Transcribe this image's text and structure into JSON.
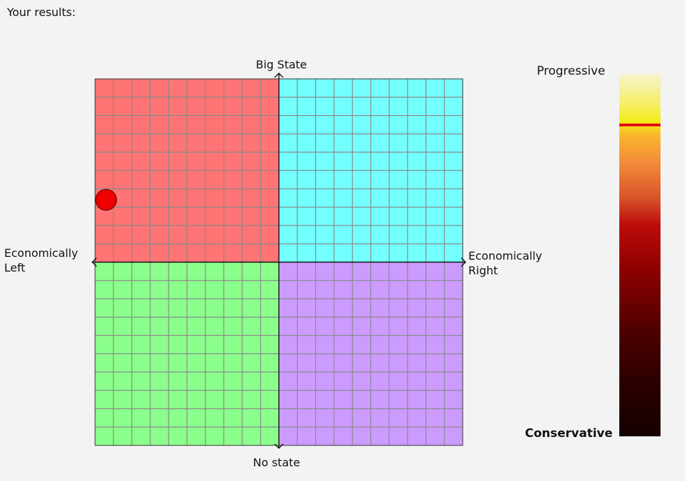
{
  "heading": "Your results:",
  "chart_data": [
    {
      "type": "scatter",
      "axes": {
        "top": "Big State",
        "bottom": "No state",
        "left": "Economically\nLeft",
        "right": "Economically\nRight"
      },
      "xlim": [
        -10,
        10
      ],
      "ylim": [
        -10,
        10
      ],
      "grid": true,
      "grid_divisions": 20,
      "quadrant_colors": {
        "top_left": "#ff7474",
        "top_right": "#74ffff",
        "bottom_left": "#8bff8b",
        "bottom_right": "#cc9bff"
      },
      "marker_color": "#ee0000",
      "points": [
        {
          "x": -9.4,
          "y": 3.4
        }
      ]
    },
    {
      "type": "scale",
      "top_label": "Progressive",
      "bottom_label": "Conservative",
      "range": [
        0,
        1
      ],
      "value": 0.86,
      "marker_color": "#e01010"
    }
  ]
}
